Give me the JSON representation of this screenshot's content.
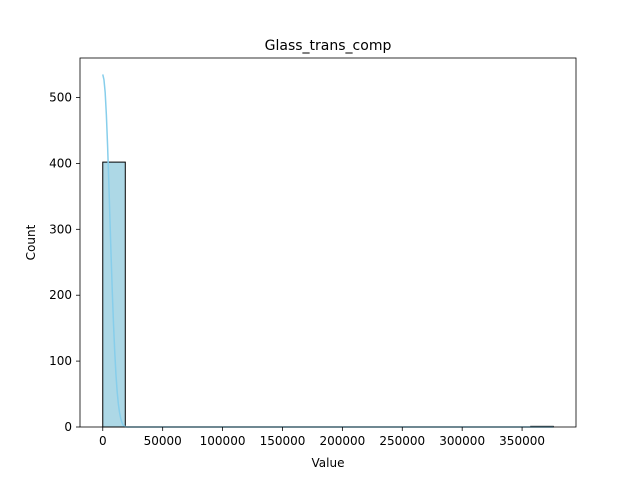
{
  "chart_data": {
    "type": "bar",
    "title": "Glass_trans_comp",
    "xlabel": "Value",
    "ylabel": "Count",
    "xlim": [
      -19000,
      395000
    ],
    "ylim": [
      0,
      560
    ],
    "x_ticks": [
      0,
      50000,
      100000,
      150000,
      200000,
      250000,
      300000,
      350000
    ],
    "x_tick_labels": [
      "0",
      "50000",
      "100000",
      "150000",
      "200000",
      "250000",
      "300000",
      "350000"
    ],
    "y_ticks": [
      0,
      100,
      200,
      300,
      400,
      500
    ],
    "y_tick_labels": [
      "0",
      "100",
      "200",
      "300",
      "400",
      "500"
    ],
    "bin_width": 18800,
    "bins": [
      {
        "x0": 0,
        "count": 402
      },
      {
        "x0": 18800,
        "count": 0
      },
      {
        "x0": 37600,
        "count": 0
      },
      {
        "x0": 56400,
        "count": 0
      },
      {
        "x0": 75200,
        "count": 0
      },
      {
        "x0": 94000,
        "count": 0
      },
      {
        "x0": 112800,
        "count": 0
      },
      {
        "x0": 131600,
        "count": 0
      },
      {
        "x0": 150400,
        "count": 0
      },
      {
        "x0": 169200,
        "count": 0
      },
      {
        "x0": 188000,
        "count": 0
      },
      {
        "x0": 206800,
        "count": 0
      },
      {
        "x0": 225600,
        "count": 0
      },
      {
        "x0": 244400,
        "count": 0
      },
      {
        "x0": 263200,
        "count": 0
      },
      {
        "x0": 282000,
        "count": 0
      },
      {
        "x0": 300800,
        "count": 0
      },
      {
        "x0": 319600,
        "count": 0
      },
      {
        "x0": 338400,
        "count": 0
      },
      {
        "x0": 357200,
        "count": 1
      }
    ],
    "kde": {
      "x": [
        0,
        1000,
        2000,
        3000,
        4000,
        5000,
        6000,
        7000,
        8000,
        9000,
        10000,
        11000,
        12000,
        13000,
        14000,
        15000,
        16000,
        17000,
        18000,
        19000,
        20000,
        50000,
        100000,
        150000,
        200000,
        250000,
        300000,
        350000,
        376000
      ],
      "y": [
        535,
        527,
        508,
        474,
        428,
        374,
        315,
        257,
        203,
        155,
        114,
        80,
        54,
        35,
        22,
        13,
        7,
        3,
        1.5,
        0.5,
        0,
        0,
        0,
        0,
        0,
        0,
        0,
        0,
        0
      ]
    },
    "bar_color": "#add8e6",
    "bar_edge_color": "#000000",
    "kde_color": "#87ceeb",
    "grid": false,
    "legend": "none"
  }
}
